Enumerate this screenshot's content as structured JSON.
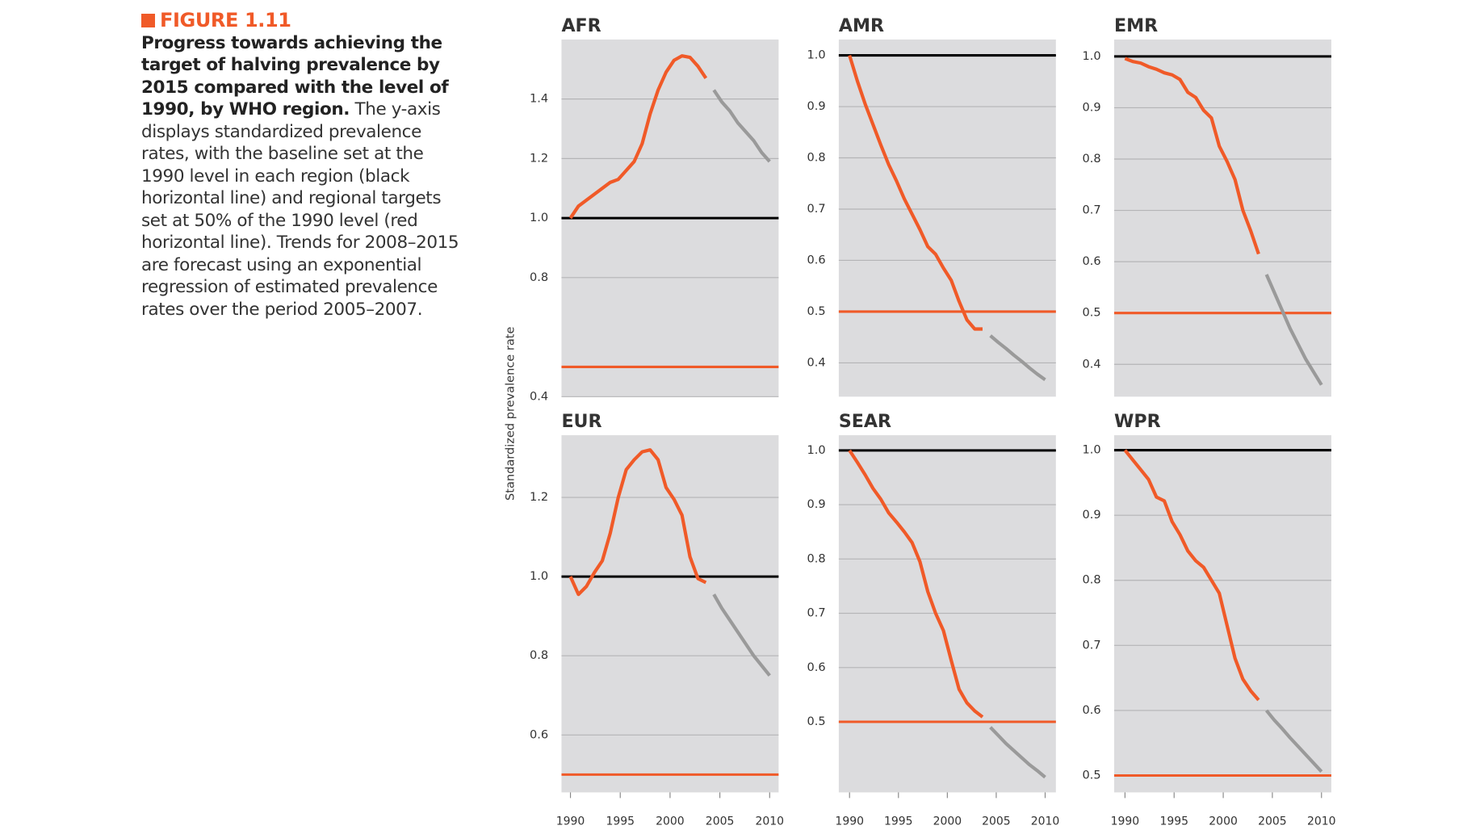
{
  "figure_label": "FIGURE 1.11",
  "caption_bold": "Progress towards achieving the target of halving prevalence by 2015 compared with the level of 1990, by WHO region.",
  "caption": "The y-axis displays standardized prevalence rates, with the baseline set at the 1990 level in each region (black horizontal line) and regional targets set at 50% of the 1990 level (red horizontal line). Trends for 2008–2015 are forecast using an exponential regression of estimated prevalence rates over the period 2005–2007.",
  "ylabel": "Standardized prevalence rate",
  "chart_data": [
    {
      "type": "line",
      "title": "AFR",
      "xlim": [
        1989.1,
        2010.9
      ],
      "ylim": [
        0.4,
        1.6
      ],
      "yticks": [
        1.4,
        1.2,
        {
          "value": 1,
          "label": "1.0"
        },
        0.8,
        0.4
      ],
      "reference_lines": [
        {
          "value": 1,
          "color": "#000000"
        },
        {
          "value": 0.5,
          "color": "#f05a28"
        }
      ],
      "x": [
        1990,
        1990.8,
        1991.6,
        1992.4,
        1993.2,
        1994,
        1994.8,
        1995.6,
        1996.4,
        1997.2,
        1998,
        1998.8,
        1999.6,
        2000.4,
        2001.2,
        2002,
        2002.8,
        2003.6,
        2004.4,
        2005.2,
        2006,
        2006.8,
        2007.6,
        2008.4,
        2009.2,
        2010
      ],
      "series": [
        {
          "color": "#f05a28",
          "values": [
            1.0,
            1.04,
            1.06,
            1.08,
            1.1,
            1.12,
            1.13,
            1.16,
            1.19,
            1.25,
            1.35,
            1.43,
            1.49,
            1.53,
            1.545,
            1.54,
            1.51,
            1.47,
            null,
            null,
            null,
            null,
            null,
            null,
            null,
            null
          ]
        },
        {
          "color": "#9a9a9a",
          "values": [
            null,
            null,
            null,
            null,
            null,
            null,
            null,
            null,
            null,
            null,
            null,
            null,
            null,
            null,
            null,
            null,
            null,
            null,
            1.43,
            1.39,
            1.36,
            1.32,
            1.29,
            1.26,
            1.22,
            1.19
          ]
        }
      ]
    },
    {
      "type": "line",
      "title": "AMR",
      "xlim": [
        1988.9,
        2011.1
      ],
      "ylim": [
        0.334,
        1.031
      ],
      "yticks": [
        {
          "value": 1,
          "label": "1.0"
        },
        0.9,
        0.8,
        0.7,
        0.6,
        0.5,
        0.4
      ],
      "reference_lines": [
        {
          "value": 1,
          "color": "#000000"
        },
        {
          "value": 0.5,
          "color": "#f05a28"
        }
      ],
      "x": [
        1990,
        1990.8,
        1991.6,
        1992.4,
        1993.2,
        1994,
        1994.8,
        1995.6,
        1996.4,
        1997.2,
        1998,
        1998.8,
        1999.6,
        2000.4,
        2001.2,
        2002,
        2002.8,
        2003.6,
        2004.4,
        2005.2,
        2006,
        2006.8,
        2007.6,
        2008.4,
        2009.2,
        2010
      ],
      "series": [
        {
          "color": "#f05a28",
          "values": [
            1.0,
            0.95,
            0.905,
            0.865,
            0.825,
            0.787,
            0.755,
            0.72,
            0.69,
            0.66,
            0.627,
            0.612,
            0.585,
            0.561,
            0.52,
            0.484,
            0.466,
            0.466,
            null,
            null,
            null,
            null,
            null,
            null,
            null,
            null
          ]
        },
        {
          "color": "#9a9a9a",
          "values": [
            null,
            null,
            null,
            null,
            null,
            null,
            null,
            null,
            null,
            null,
            null,
            null,
            null,
            null,
            null,
            null,
            null,
            null,
            0.453,
            0.44,
            0.428,
            0.415,
            0.403,
            0.39,
            0.378,
            0.367
          ]
        }
      ]
    },
    {
      "type": "line",
      "title": "EMR",
      "xlim": [
        1988.9,
        2011
      ],
      "ylim": [
        0.337,
        1.033
      ],
      "yticks": [
        {
          "value": 1,
          "label": "1.0"
        },
        0.9,
        0.8,
        0.7,
        0.6,
        0.5,
        0.4
      ],
      "reference_lines": [
        {
          "value": 1,
          "color": "#000000"
        },
        {
          "value": 0.5,
          "color": "#f05a28"
        }
      ],
      "x": [
        1990,
        1990.8,
        1991.6,
        1992.4,
        1993.2,
        1994,
        1994.8,
        1995.6,
        1996.4,
        1997.2,
        1998,
        1998.8,
        1999.6,
        2000.4,
        2001.2,
        2002,
        2002.8,
        2003.6,
        2004.4,
        2005.2,
        2006,
        2006.8,
        2007.6,
        2008.4,
        2009.2,
        2010
      ],
      "series": [
        {
          "color": "#f05a28",
          "values": [
            0.996,
            0.99,
            0.987,
            0.98,
            0.975,
            0.968,
            0.964,
            0.955,
            0.93,
            0.92,
            0.895,
            0.88,
            0.825,
            0.795,
            0.76,
            0.7,
            0.66,
            0.615,
            null,
            null,
            null,
            null,
            null,
            null,
            null,
            null
          ]
        },
        {
          "color": "#9a9a9a",
          "values": [
            null,
            null,
            null,
            null,
            null,
            null,
            null,
            null,
            null,
            null,
            null,
            null,
            null,
            null,
            null,
            null,
            null,
            null,
            0.575,
            0.54,
            0.505,
            0.47,
            0.44,
            0.41,
            0.385,
            0.36
          ]
        }
      ]
    },
    {
      "type": "line",
      "title": "EUR",
      "xlim": [
        1989.1,
        2010.9
      ],
      "ylim": [
        0.455,
        1.357
      ],
      "xticks": [
        1990,
        1995,
        2000,
        2005,
        2010
      ],
      "yticks": [
        1.2,
        {
          "value": 1,
          "label": "1.0"
        },
        0.8,
        0.6
      ],
      "reference_lines": [
        {
          "value": 1,
          "color": "#000000"
        },
        {
          "value": 0.5,
          "color": "#f05a28"
        }
      ],
      "x": [
        1990,
        1990.8,
        1991.6,
        1992.4,
        1993.2,
        1994,
        1994.8,
        1995.6,
        1996.4,
        1997.2,
        1998,
        1998.8,
        1999.6,
        2000.4,
        2001.2,
        2002,
        2002.8,
        2003.6,
        2004.4,
        2005.2,
        2006,
        2006.8,
        2007.6,
        2008.4,
        2009.2,
        2010
      ],
      "series": [
        {
          "color": "#f05a28",
          "values": [
            1.0,
            0.955,
            0.975,
            1.01,
            1.04,
            1.11,
            1.2,
            1.27,
            1.295,
            1.315,
            1.32,
            1.295,
            1.225,
            1.195,
            1.155,
            1.05,
            0.995,
            0.985,
            null,
            null,
            null,
            null,
            null,
            null,
            null,
            null
          ]
        },
        {
          "color": "#9a9a9a",
          "values": [
            null,
            null,
            null,
            null,
            null,
            null,
            null,
            null,
            null,
            null,
            null,
            null,
            null,
            null,
            null,
            null,
            null,
            null,
            0.955,
            0.92,
            0.89,
            0.86,
            0.83,
            0.8,
            0.775,
            0.75
          ]
        }
      ]
    },
    {
      "type": "line",
      "title": "SEAR",
      "xlim": [
        1988.9,
        2011.1
      ],
      "ylim": [
        0.37,
        1.028
      ],
      "xticks": [
        1990,
        1995,
        2000,
        2005,
        2010
      ],
      "yticks": [
        {
          "value": 1,
          "label": "1.0"
        },
        0.9,
        0.8,
        0.7,
        0.6,
        0.5
      ],
      "reference_lines": [
        {
          "value": 1,
          "color": "#000000"
        },
        {
          "value": 0.5,
          "color": "#f05a28"
        }
      ],
      "x": [
        1990,
        1990.8,
        1991.6,
        1992.4,
        1993.2,
        1994,
        1994.8,
        1995.6,
        1996.4,
        1997.2,
        1998,
        1998.8,
        1999.6,
        2000.4,
        2001.2,
        2002,
        2002.8,
        2003.6,
        2004.4,
        2005.2,
        2006,
        2006.8,
        2007.6,
        2008.4,
        2009.2,
        2010
      ],
      "series": [
        {
          "color": "#f05a28",
          "values": [
            1.0,
            0.978,
            0.955,
            0.93,
            0.91,
            0.885,
            0.868,
            0.85,
            0.83,
            0.795,
            0.74,
            0.7,
            0.668,
            0.613,
            0.56,
            0.535,
            0.52,
            0.509,
            null,
            null,
            null,
            null,
            null,
            null,
            null,
            null
          ]
        },
        {
          "color": "#9a9a9a",
          "values": [
            null,
            null,
            null,
            null,
            null,
            null,
            null,
            null,
            null,
            null,
            null,
            null,
            null,
            null,
            null,
            null,
            null,
            null,
            0.49,
            0.475,
            0.46,
            0.447,
            0.434,
            0.421,
            0.41,
            0.398
          ]
        }
      ]
    },
    {
      "type": "line",
      "title": "WPR",
      "xlim": [
        1988.9,
        2011
      ],
      "ylim": [
        0.474,
        1.023
      ],
      "xticks": [
        1990,
        1995,
        2000,
        2005,
        2010
      ],
      "yticks": [
        {
          "value": 1,
          "label": "1.0"
        },
        0.9,
        0.8,
        0.7,
        0.6,
        0.5
      ],
      "reference_lines": [
        {
          "value": 1,
          "color": "#000000"
        },
        {
          "value": 0.5,
          "color": "#f05a28"
        }
      ],
      "x": [
        1990,
        1990.8,
        1991.6,
        1992.4,
        1993.2,
        1994,
        1994.8,
        1995.6,
        1996.4,
        1997.2,
        1998,
        1998.8,
        1999.6,
        2000.4,
        2001.2,
        2002,
        2002.8,
        2003.6,
        2004.4,
        2005.2,
        2006,
        2006.8,
        2007.6,
        2008.4,
        2009.2,
        2010
      ],
      "series": [
        {
          "color": "#f05a28",
          "values": [
            1.0,
            0.985,
            0.97,
            0.955,
            0.928,
            0.922,
            0.89,
            0.87,
            0.845,
            0.83,
            0.82,
            0.8,
            0.78,
            0.73,
            0.68,
            0.648,
            0.63,
            0.616,
            null,
            null,
            null,
            null,
            null,
            null,
            null,
            null
          ]
        },
        {
          "color": "#9a9a9a",
          "values": [
            null,
            null,
            null,
            null,
            null,
            null,
            null,
            null,
            null,
            null,
            null,
            null,
            null,
            null,
            null,
            null,
            null,
            null,
            0.6,
            0.585,
            0.572,
            0.558,
            0.545,
            0.532,
            0.519,
            0.506
          ]
        }
      ]
    }
  ]
}
